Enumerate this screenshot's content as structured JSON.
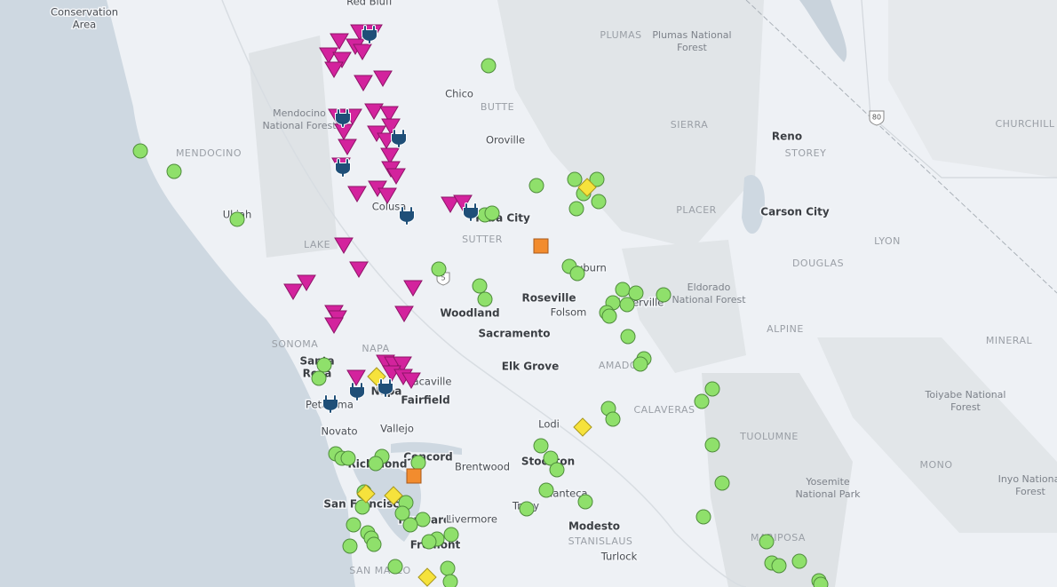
{
  "labels": [
    [
      "Conservation",
      "Area"
    ],
    [
      "Red Bluff"
    ],
    [
      "Plumas National",
      "Forest"
    ],
    [
      "PLUMAS"
    ],
    [
      "Chico"
    ],
    [
      "BUTTE"
    ],
    [
      "Mendocino",
      "National Forest"
    ],
    [
      "MENDOCINO"
    ],
    [
      "Oroville"
    ],
    [
      "SIERRA"
    ],
    [
      "Reno"
    ],
    [
      "CHURCHILL"
    ],
    [
      "STOREY"
    ],
    [
      "80"
    ],
    [
      "Ukiah"
    ],
    [
      "Colusa"
    ],
    [
      "Yuba City"
    ],
    [
      "SUTTER"
    ],
    [
      "PLACER"
    ],
    [
      "Carson City"
    ],
    [
      "LYON"
    ],
    [
      "LAKE"
    ],
    [
      "DOUGLAS"
    ],
    [
      "Auburn"
    ],
    [
      "Eldorado",
      "National Forest"
    ],
    [
      "Roseville"
    ],
    [
      "Woodland"
    ],
    [
      "Folsom"
    ],
    [
      "Placerville"
    ],
    [
      "ALPINE"
    ],
    [
      "SONOMA"
    ],
    [
      "NAPA"
    ],
    [
      "Sacramento"
    ],
    [
      "Santa",
      "Rosa"
    ],
    [
      "MINERAL"
    ],
    [
      "Elk Grove"
    ],
    [
      "AMADOR"
    ],
    [
      "Vacaville"
    ],
    [
      "Fairfield"
    ],
    [
      "Napa"
    ],
    [
      "Petaluma"
    ],
    [
      "Toiyabe National",
      "Forest"
    ],
    [
      "CALAVERAS"
    ],
    [
      "Lodi"
    ],
    [
      "Novato"
    ],
    [
      "Vallejo"
    ],
    [
      "TUOLUMNE"
    ],
    [
      "Concord"
    ],
    [
      "Richmond"
    ],
    [
      "Brentwood"
    ],
    [
      "Stockton"
    ],
    [
      "MONO"
    ],
    [
      "Yosemite",
      "National Park"
    ],
    [
      "Inyo National",
      "Forest"
    ],
    [
      "San Francisco"
    ],
    [
      "Hayward"
    ],
    [
      "Livermore"
    ],
    [
      "Manteca"
    ],
    [
      "Tracy"
    ],
    [
      "Modesto"
    ],
    [
      "STANISLAUS"
    ],
    [
      "Fremont"
    ],
    [
      "Turlock"
    ],
    [
      "MARIPOSA"
    ],
    [
      "SAN MATEO"
    ],
    [
      "5"
    ]
  ]
}
